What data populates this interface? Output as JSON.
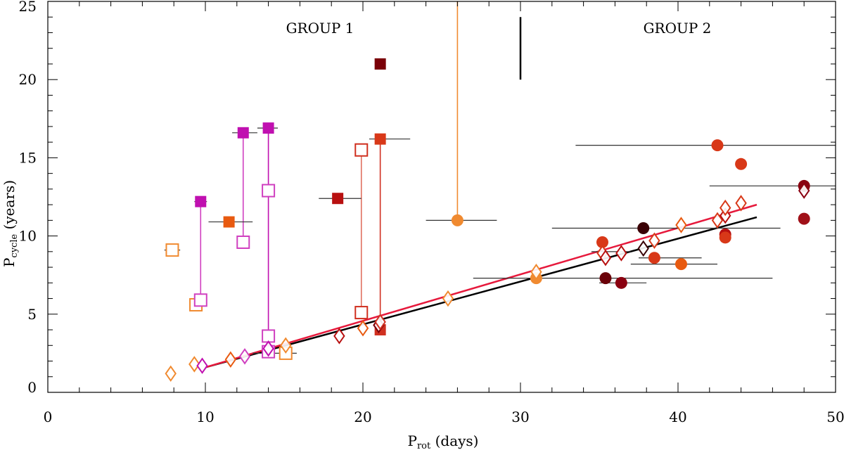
{
  "chart_data": {
    "type": "scatter",
    "title": "",
    "xlabel_main": "P",
    "xlabel_sub": "rot",
    "xlabel_unit": " (days)",
    "ylabel_main": "P",
    "ylabel_sub": "cycle",
    "ylabel_unit": " (years)",
    "xlim": [
      0,
      50
    ],
    "ylim": [
      0,
      25
    ],
    "xticks": [
      "0",
      "10",
      "20",
      "30",
      "40",
      "50"
    ],
    "yticks": [
      "0",
      "5",
      "10",
      "15",
      "20",
      "25"
    ],
    "grid": false,
    "legend": "none",
    "group_labels": [
      "GROUP 1",
      "GROUP 2"
    ],
    "group_divider_x": 30,
    "group_divider_y": [
      20,
      24
    ],
    "fit_lines": [
      {
        "color": "#000000",
        "x": [
          10,
          45
        ],
        "y": [
          1.6,
          11.2
        ]
      },
      {
        "color": "#e6193c",
        "x": [
          10,
          45
        ],
        "y": [
          1.6,
          12.0
        ]
      }
    ],
    "connectors": [
      {
        "x": 9.7,
        "y1": 5.9,
        "y2": 12.2,
        "color": "#d040c0"
      },
      {
        "x": 12.4,
        "y1": 9.6,
        "y2": 16.6,
        "color": "#d040c0"
      },
      {
        "x": 14.0,
        "y1": 2.5,
        "y2": 16.9,
        "color": "#c010b0"
      },
      {
        "x": 19.9,
        "y1": 5.1,
        "y2": 15.5,
        "color": "#e07060"
      },
      {
        "x": 21.1,
        "y1": 4.0,
        "y2": 16.2,
        "color": "#d03020"
      },
      {
        "x": 26.0,
        "y1": 11.0,
        "y2": 25.0,
        "color": "#f08a30"
      }
    ],
    "xerrors": [
      {
        "y": 9.1,
        "x1": 7.4,
        "x2": 8.4,
        "color": "#333333"
      },
      {
        "y": 12.2,
        "x1": 9.3,
        "x2": 10.1,
        "color": "#333333"
      },
      {
        "y": 10.9,
        "x1": 10.2,
        "x2": 13.0,
        "color": "#333333"
      },
      {
        "y": 16.6,
        "x1": 11.7,
        "x2": 13.3,
        "color": "#333333"
      },
      {
        "y": 16.9,
        "x1": 13.3,
        "x2": 14.6,
        "color": "#333333"
      },
      {
        "y": 12.4,
        "x1": 17.2,
        "x2": 19.9,
        "color": "#333333"
      },
      {
        "y": 16.2,
        "x1": 20.4,
        "x2": 23.0,
        "color": "#333333"
      },
      {
        "y": 11.0,
        "x1": 24.0,
        "x2": 28.5,
        "color": "#333333"
      },
      {
        "y": 2.5,
        "x1": 13.0,
        "x2": 15.8,
        "color": "#333333"
      },
      {
        "y": 7.3,
        "x1": 27.0,
        "x2": 35.0,
        "color": "#333333"
      },
      {
        "y": 7.3,
        "x1": 35.0,
        "x2": 46.0,
        "color": "#333333"
      },
      {
        "y": 10.5,
        "x1": 32.0,
        "x2": 46.5,
        "color": "#333333"
      },
      {
        "y": 15.8,
        "x1": 33.5,
        "x2": 50.0,
        "color": "#333333"
      },
      {
        "y": 13.2,
        "x1": 42.0,
        "x2": 50.0,
        "color": "#333333"
      },
      {
        "y": 8.6,
        "x1": 37.5,
        "x2": 41.5,
        "color": "#333333"
      },
      {
        "y": 8.2,
        "x1": 37.0,
        "x2": 42.5,
        "color": "#333333"
      },
      {
        "y": 7.0,
        "x1": 35.0,
        "x2": 38.0,
        "color": "#333333"
      },
      {
        "y": 9.0,
        "x1": 34.5,
        "x2": 37.0,
        "color": "#333333"
      }
    ],
    "series": [
      {
        "marker": "square-filled",
        "points": [
          {
            "x": 9.7,
            "y": 12.2,
            "color": "#c010b0"
          },
          {
            "x": 11.5,
            "y": 10.9,
            "color": "#e85a10"
          },
          {
            "x": 12.4,
            "y": 16.6,
            "color": "#c010b0"
          },
          {
            "x": 14.0,
            "y": 16.9,
            "color": "#c010b0"
          },
          {
            "x": 18.4,
            "y": 12.4,
            "color": "#b81010"
          },
          {
            "x": 21.1,
            "y": 21.0,
            "color": "#7a0008"
          },
          {
            "x": 21.1,
            "y": 16.2,
            "color": "#d83818"
          },
          {
            "x": 21.1,
            "y": 4.0,
            "color": "#d03020"
          }
        ]
      },
      {
        "marker": "square-open",
        "points": [
          {
            "x": 7.9,
            "y": 9.1,
            "color": "#f08a30"
          },
          {
            "x": 9.4,
            "y": 5.6,
            "color": "#f08a30"
          },
          {
            "x": 9.7,
            "y": 5.9,
            "color": "#d040c0"
          },
          {
            "x": 12.4,
            "y": 9.6,
            "color": "#d040c0"
          },
          {
            "x": 14.0,
            "y": 12.9,
            "color": "#d040c0"
          },
          {
            "x": 14.0,
            "y": 3.6,
            "color": "#d040c0"
          },
          {
            "x": 14.0,
            "y": 2.6,
            "color": "#d040c0"
          },
          {
            "x": 15.1,
            "y": 2.5,
            "color": "#f08a30"
          },
          {
            "x": 19.9,
            "y": 15.5,
            "color": "#d03020"
          },
          {
            "x": 19.9,
            "y": 5.1,
            "color": "#d03020"
          }
        ]
      },
      {
        "marker": "circle-filled",
        "points": [
          {
            "x": 26.0,
            "y": 11.0,
            "color": "#f08a30"
          },
          {
            "x": 31.0,
            "y": 7.3,
            "color": "#f08a30"
          },
          {
            "x": 35.2,
            "y": 9.6,
            "color": "#d83818"
          },
          {
            "x": 35.4,
            "y": 7.3,
            "color": "#6a0008"
          },
          {
            "x": 36.4,
            "y": 7.0,
            "color": "#8a0010"
          },
          {
            "x": 37.8,
            "y": 10.5,
            "color": "#3a0005"
          },
          {
            "x": 38.5,
            "y": 8.6,
            "color": "#d83818"
          },
          {
            "x": 40.2,
            "y": 8.2,
            "color": "#e85a10"
          },
          {
            "x": 42.5,
            "y": 15.8,
            "color": "#d83818"
          },
          {
            "x": 43.0,
            "y": 10.1,
            "color": "#b81010"
          },
          {
            "x": 43.0,
            "y": 9.9,
            "color": "#d83818"
          },
          {
            "x": 44.0,
            "y": 14.6,
            "color": "#d83818"
          },
          {
            "x": 48.0,
            "y": 13.2,
            "color": "#8a0010"
          },
          {
            "x": 48.0,
            "y": 11.1,
            "color": "#a01018"
          }
        ]
      },
      {
        "marker": "diamond-open",
        "points": [
          {
            "x": 7.8,
            "y": 1.2,
            "color": "#f08a30"
          },
          {
            "x": 9.3,
            "y": 1.8,
            "color": "#f08a30"
          },
          {
            "x": 9.8,
            "y": 1.7,
            "color": "#c010b0"
          },
          {
            "x": 11.6,
            "y": 2.1,
            "color": "#e85a10"
          },
          {
            "x": 12.5,
            "y": 2.3,
            "color": "#d040c0"
          },
          {
            "x": 14.0,
            "y": 2.8,
            "color": "#c010b0"
          },
          {
            "x": 15.1,
            "y": 3.0,
            "color": "#f08a30"
          },
          {
            "x": 18.5,
            "y": 3.6,
            "color": "#b81010"
          },
          {
            "x": 20.0,
            "y": 4.1,
            "color": "#e85a10"
          },
          {
            "x": 21.0,
            "y": 4.3,
            "color": "#7a0008"
          },
          {
            "x": 21.1,
            "y": 4.5,
            "color": "#d03020"
          },
          {
            "x": 25.4,
            "y": 6.0,
            "color": "#f08a30"
          },
          {
            "x": 31.0,
            "y": 7.7,
            "color": "#f08a30"
          },
          {
            "x": 35.2,
            "y": 8.9,
            "color": "#d83818"
          },
          {
            "x": 35.4,
            "y": 8.6,
            "color": "#b81010"
          },
          {
            "x": 36.4,
            "y": 8.9,
            "color": "#b81010"
          },
          {
            "x": 37.8,
            "y": 9.2,
            "color": "#3a0005"
          },
          {
            "x": 38.5,
            "y": 9.7,
            "color": "#d83818"
          },
          {
            "x": 40.2,
            "y": 10.7,
            "color": "#e85a10"
          },
          {
            "x": 42.5,
            "y": 11.0,
            "color": "#d83818"
          },
          {
            "x": 43.0,
            "y": 11.3,
            "color": "#b81010"
          },
          {
            "x": 43.0,
            "y": 11.8,
            "color": "#d83818"
          },
          {
            "x": 44.0,
            "y": 12.1,
            "color": "#d83818"
          },
          {
            "x": 48.0,
            "y": 12.9,
            "color": "#8a0010"
          }
        ]
      }
    ]
  }
}
